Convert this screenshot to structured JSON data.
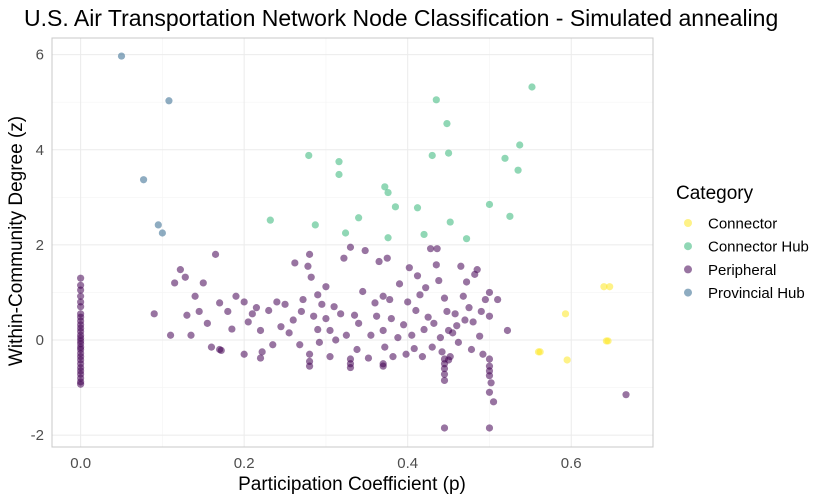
{
  "chart_data": {
    "type": "scatter",
    "title": "U.S. Air Transportation Network Node Classification - Simulated annealing",
    "xlabel": "Participation Coefficient (p)",
    "ylabel": "Within-Community Degree (z)",
    "xlim": [
      -0.035,
      0.7
    ],
    "ylim": [
      -2.25,
      6.35
    ],
    "x_ticks": [
      0.0,
      0.2,
      0.4,
      0.6
    ],
    "x_tick_labels": [
      "0.0",
      "0.2",
      "0.4",
      "0.6"
    ],
    "y_ticks": [
      -2,
      0,
      2,
      4,
      6
    ],
    "y_tick_labels": [
      "-2",
      "0",
      "2",
      "4",
      "6"
    ],
    "grid": true,
    "legend": {
      "title": "Category",
      "position": "right"
    },
    "series": [
      {
        "name": "Connector",
        "color": "#FDE725",
        "points": [
          [
            0.593,
            0.55
          ],
          [
            0.595,
            -0.42
          ],
          [
            0.56,
            -0.25
          ],
          [
            0.562,
            -0.25
          ],
          [
            0.64,
            1.12
          ],
          [
            0.647,
            1.12
          ],
          [
            0.643,
            -0.02
          ],
          [
            0.645,
            -0.02
          ]
        ]
      },
      {
        "name": "Connector Hub",
        "color": "#35B779",
        "points": [
          [
            0.232,
            2.52
          ],
          [
            0.279,
            3.88
          ],
          [
            0.287,
            2.42
          ],
          [
            0.316,
            3.75
          ],
          [
            0.316,
            3.48
          ],
          [
            0.324,
            2.25
          ],
          [
            0.34,
            2.57
          ],
          [
            0.372,
            3.22
          ],
          [
            0.376,
            3.1
          ],
          [
            0.376,
            2.15
          ],
          [
            0.385,
            2.8
          ],
          [
            0.412,
            2.78
          ],
          [
            0.42,
            2.22
          ],
          [
            0.43,
            3.88
          ],
          [
            0.435,
            5.05
          ],
          [
            0.448,
            4.55
          ],
          [
            0.45,
            3.93
          ],
          [
            0.452,
            2.48
          ],
          [
            0.472,
            2.13
          ],
          [
            0.5,
            2.85
          ],
          [
            0.519,
            3.82
          ],
          [
            0.525,
            2.6
          ],
          [
            0.535,
            3.57
          ],
          [
            0.537,
            4.1
          ],
          [
            0.552,
            5.32
          ]
        ]
      },
      {
        "name": "Peripheral",
        "color": "#440154",
        "points": [
          [
            0,
            1.3
          ],
          [
            0,
            1.15
          ],
          [
            0,
            1.05
          ],
          [
            0,
            0.92
          ],
          [
            0,
            0.8
          ],
          [
            0,
            0.7
          ],
          [
            0,
            0.55
          ],
          [
            0,
            0.48
          ],
          [
            0,
            0.4
          ],
          [
            0,
            0.32
          ],
          [
            0,
            0.25
          ],
          [
            0,
            0.18
          ],
          [
            0,
            0.1
          ],
          [
            0,
            0.04
          ],
          [
            0,
            -0.02
          ],
          [
            0,
            -0.08
          ],
          [
            0,
            -0.15
          ],
          [
            0,
            -0.2
          ],
          [
            0,
            -0.28
          ],
          [
            0,
            -0.35
          ],
          [
            0,
            -0.42
          ],
          [
            0,
            -0.5
          ],
          [
            0,
            -0.58
          ],
          [
            0,
            -0.65
          ],
          [
            0,
            -0.72
          ],
          [
            0,
            -0.8
          ],
          [
            0,
            -0.88
          ],
          [
            0,
            -0.93
          ],
          [
            0.09,
            0.55
          ],
          [
            0.11,
            0.1
          ],
          [
            0.115,
            1.2
          ],
          [
            0.122,
            1.48
          ],
          [
            0.128,
            1.32
          ],
          [
            0.13,
            0.52
          ],
          [
            0.135,
            0.1
          ],
          [
            0.14,
            0.92
          ],
          [
            0.145,
            0.6
          ],
          [
            0.15,
            1.2
          ],
          [
            0.155,
            0.35
          ],
          [
            0.16,
            -0.15
          ],
          [
            0.165,
            1.8
          ],
          [
            0.17,
            0.78
          ],
          [
            0.172,
            -0.22
          ],
          [
            0.18,
            0.6
          ],
          [
            0.185,
            0.23
          ],
          [
            0.19,
            0.92
          ],
          [
            0.2,
            0.8
          ],
          [
            0.2,
            -0.3
          ],
          [
            0.205,
            0.38
          ],
          [
            0.21,
            0.55
          ],
          [
            0.215,
            0.68
          ],
          [
            0.22,
            0.2
          ],
          [
            0.222,
            -0.25
          ],
          [
            0.23,
            0.62
          ],
          [
            0.235,
            -0.1
          ],
          [
            0.24,
            0.8
          ],
          [
            0.245,
            0.28
          ],
          [
            0.25,
            0.75
          ],
          [
            0.255,
            0.15
          ],
          [
            0.26,
            0.42
          ],
          [
            0.262,
            1.62
          ],
          [
            0.268,
            -0.1
          ],
          [
            0.27,
            0.6
          ],
          [
            0.272,
            0.85
          ],
          [
            0.278,
            1.55
          ],
          [
            0.28,
            1.8
          ],
          [
            0.282,
            1.32
          ],
          [
            0.285,
            0.5
          ],
          [
            0.29,
            0.22
          ],
          [
            0.29,
            0.95
          ],
          [
            0.292,
            -0.05
          ],
          [
            0.295,
            0.75
          ],
          [
            0.3,
            0.45
          ],
          [
            0.3,
            1.12
          ],
          [
            0.305,
            0.2
          ],
          [
            0.305,
            -0.35
          ],
          [
            0.31,
            0.7
          ],
          [
            0.312,
            0.0
          ],
          [
            0.318,
            0.55
          ],
          [
            0.322,
            1.72
          ],
          [
            0.325,
            0.1
          ],
          [
            0.33,
            1.95
          ],
          [
            0.335,
            0.52
          ],
          [
            0.338,
            -0.2
          ],
          [
            0.34,
            0.35
          ],
          [
            0.345,
            1.02
          ],
          [
            0.348,
            1.88
          ],
          [
            0.352,
            -0.38
          ],
          [
            0.355,
            0.1
          ],
          [
            0.36,
            0.78
          ],
          [
            0.362,
            0.5
          ],
          [
            0.365,
            1.65
          ],
          [
            0.37,
            0.2
          ],
          [
            0.37,
            0.92
          ],
          [
            0.372,
            -0.15
          ],
          [
            0.375,
            1.72
          ],
          [
            0.378,
            0.85
          ],
          [
            0.38,
            0.45
          ],
          [
            0.382,
            -0.35
          ],
          [
            0.388,
            0.05
          ],
          [
            0.39,
            1.18
          ],
          [
            0.395,
            0.32
          ],
          [
            0.398,
            -0.3
          ],
          [
            0.4,
            0.8
          ],
          [
            0.402,
            1.52
          ],
          [
            0.405,
            0.1
          ],
          [
            0.408,
            -0.18
          ],
          [
            0.41,
            0.62
          ],
          [
            0.412,
            1.35
          ],
          [
            0.415,
            0.95
          ],
          [
            0.418,
            -0.35
          ],
          [
            0.42,
            0.22
          ],
          [
            0.422,
            1.1
          ],
          [
            0.425,
            0.48
          ],
          [
            0.428,
            1.92
          ],
          [
            0.43,
            -0.15
          ],
          [
            0.432,
            0.35
          ],
          [
            0.435,
            1.58
          ],
          [
            0.436,
            1.92
          ],
          [
            0.438,
            1.25
          ],
          [
            0.44,
            0.05
          ],
          [
            0.442,
            -0.25
          ],
          [
            0.445,
            0.88
          ],
          [
            0.448,
            0.6
          ],
          [
            0.45,
            0.2
          ],
          [
            0.452,
            -0.35
          ],
          [
            0.455,
            0.15
          ],
          [
            0.458,
            0.55
          ],
          [
            0.46,
            0.3
          ],
          [
            0.462,
            -0.05
          ],
          [
            0.465,
            1.55
          ],
          [
            0.468,
            0.92
          ],
          [
            0.47,
            0.42
          ],
          [
            0.472,
            1.22
          ],
          [
            0.475,
            0.68
          ],
          [
            0.478,
            -0.2
          ],
          [
            0.48,
            0.38
          ],
          [
            0.482,
            1.38
          ],
          [
            0.485,
            1.48
          ],
          [
            0.488,
            0.08
          ],
          [
            0.49,
            0.6
          ],
          [
            0.492,
            -0.3
          ],
          [
            0.495,
            0.85
          ],
          [
            0.5,
            1.0
          ],
          [
            0.5,
            0.5
          ],
          [
            0.502,
            -0.9
          ],
          [
            0.505,
            -1.3
          ],
          [
            0.51,
            0.85
          ],
          [
            0.522,
            0.2
          ],
          [
            0.445,
            -1.85
          ],
          [
            0.5,
            -1.85
          ],
          [
            0.667,
            -1.15
          ],
          [
            0.445,
            -0.4
          ],
          [
            0.445,
            -0.5
          ],
          [
            0.445,
            -0.6
          ],
          [
            0.445,
            -0.72
          ],
          [
            0.445,
            -0.85
          ],
          [
            0.5,
            -0.4
          ],
          [
            0.5,
            -0.55
          ],
          [
            0.5,
            -0.65
          ],
          [
            0.5,
            -0.75
          ],
          [
            0.5,
            -1.1
          ],
          [
            0.45,
            -0.42
          ],
          [
            0.33,
            -0.4
          ],
          [
            0.33,
            -0.5
          ],
          [
            0.33,
            -0.58
          ],
          [
            0.28,
            -0.3
          ],
          [
            0.28,
            -0.45
          ],
          [
            0.28,
            -0.55
          ],
          [
            0.37,
            -0.5
          ],
          [
            0.37,
            -0.55
          ],
          [
            0.22,
            -0.38
          ],
          [
            0.17,
            -0.2
          ]
        ]
      },
      {
        "name": "Provincial Hub",
        "color": "#31688E",
        "points": [
          [
            0.05,
            5.97
          ],
          [
            0.108,
            5.03
          ],
          [
            0.077,
            3.37
          ],
          [
            0.095,
            2.42
          ],
          [
            0.1,
            2.25
          ]
        ]
      }
    ]
  }
}
